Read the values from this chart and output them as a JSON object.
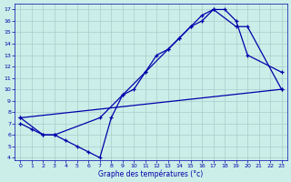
{
  "xlabel": "Graphe des températures (°c)",
  "bg_color": "#cceee8",
  "grid_color": "#aacccc",
  "line_color": "#0000aa",
  "x_ticks": [
    0,
    1,
    2,
    3,
    4,
    5,
    6,
    7,
    8,
    9,
    10,
    11,
    12,
    13,
    14,
    15,
    16,
    17,
    18,
    19,
    20,
    21,
    22,
    23
  ],
  "y_ticks": [
    4,
    5,
    6,
    7,
    8,
    9,
    10,
    11,
    12,
    13,
    14,
    15,
    16,
    17
  ],
  "ylim": [
    3.8,
    17.5
  ],
  "xlim": [
    -0.5,
    23.5
  ],
  "curve1_x": [
    0,
    1,
    2,
    3,
    4,
    5,
    6,
    7,
    8,
    9,
    10,
    11,
    12,
    13,
    14,
    15,
    16,
    17,
    18,
    19,
    20,
    23
  ],
  "curve1_y": [
    7.0,
    6.5,
    6.0,
    6.0,
    5.5,
    5.0,
    4.5,
    4.0,
    7.5,
    9.5,
    10.0,
    11.5,
    13.0,
    13.5,
    14.5,
    15.5,
    16.0,
    17.0,
    17.0,
    16.0,
    13.0,
    11.5
  ],
  "curve2_x": [
    0,
    2,
    3,
    7,
    9,
    11,
    13,
    14,
    15,
    16,
    17,
    19,
    20,
    23
  ],
  "curve2_y": [
    7.5,
    6.0,
    6.0,
    7.5,
    9.5,
    11.5,
    13.5,
    14.5,
    15.5,
    16.5,
    17.0,
    15.5,
    15.5,
    10.0
  ],
  "curve3_x": [
    0,
    23
  ],
  "curve3_y": [
    7.5,
    10.0
  ]
}
